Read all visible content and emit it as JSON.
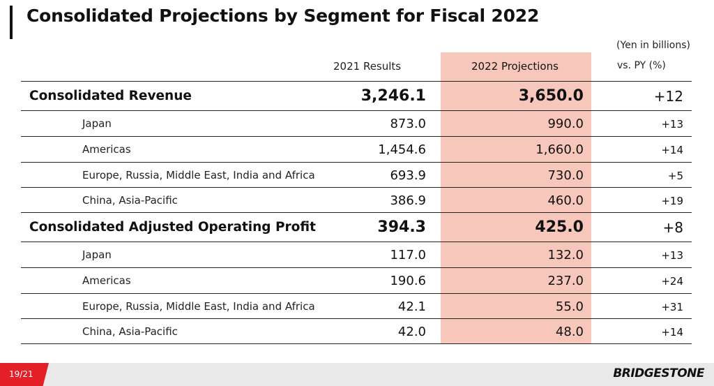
{
  "title": "Consolidated Projections by Segment for Fiscal 2022",
  "unit_note": "(Yen in billions)",
  "columns": {
    "c2021": "2021 Results",
    "c2022": "2022 Projections",
    "vs_py": "vs. PY (%)"
  },
  "rows": [
    {
      "label": "Consolidated Revenue",
      "v2021": "3,246.1",
      "v2022": "3,650.0",
      "vs": "+12",
      "main": true
    },
    {
      "label": "Japan",
      "v2021": "873.0",
      "v2022": "990.0",
      "vs": "+13",
      "main": false
    },
    {
      "label": "Americas",
      "v2021": "1,454.6",
      "v2022": "1,660.0",
      "vs": "+14",
      "main": false
    },
    {
      "label": "Europe, Russia, Middle East, India and Africa",
      "v2021": "693.9",
      "v2022": "730.0",
      "vs": "+5",
      "main": false
    },
    {
      "label": "China, Asia-Pacific",
      "v2021": "386.9",
      "v2022": "460.0",
      "vs": "+19",
      "main": false
    },
    {
      "label": "Consolidated Adjusted Operating Profit",
      "v2021": "394.3",
      "v2022": "425.0",
      "vs": "+8",
      "main": true
    },
    {
      "label": "Japan",
      "v2021": "117.0",
      "v2022": "132.0",
      "vs": "+13",
      "main": false
    },
    {
      "label": "Americas",
      "v2021": "190.6",
      "v2022": "237.0",
      "vs": "+24",
      "main": false
    },
    {
      "label": "Europe, Russia, Middle East, India and Africa",
      "v2021": "42.1",
      "v2022": "55.0",
      "vs": "+31",
      "main": false
    },
    {
      "label": "China, Asia-Pacific",
      "v2021": "42.0",
      "v2022": "48.0",
      "vs": "+14",
      "main": false
    }
  ],
  "footer": {
    "page": "19/21",
    "logo": "BRIDGESTONE"
  },
  "colors": {
    "highlight": "#f8c7bb",
    "accent": "#e32027"
  }
}
